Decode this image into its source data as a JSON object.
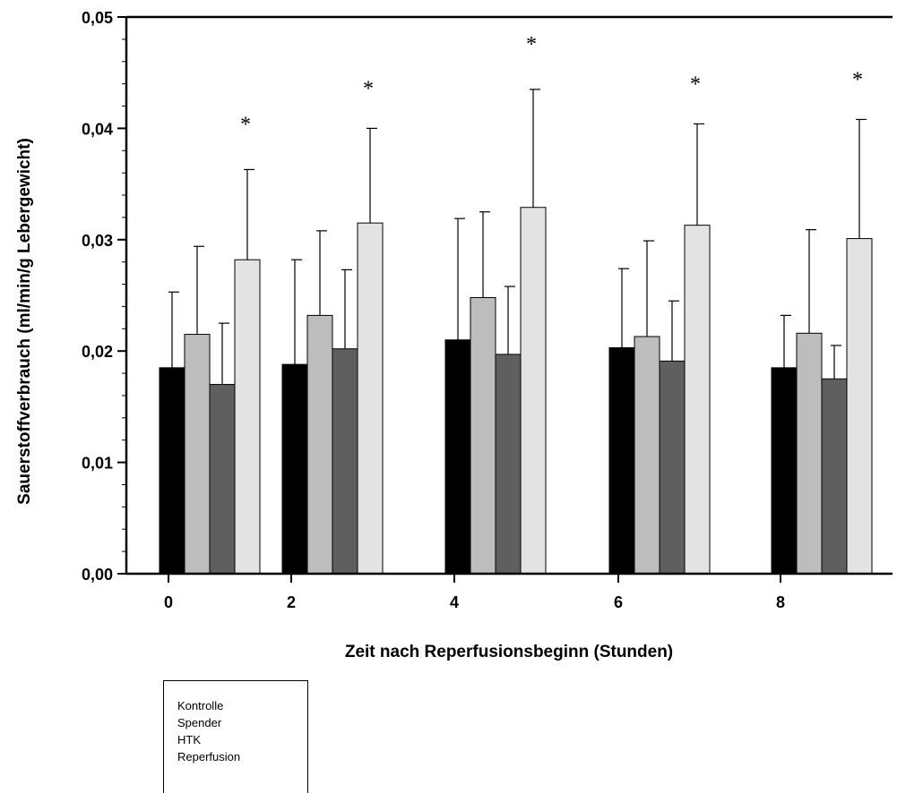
{
  "chart_data": {
    "type": "bar",
    "xlabel": "Zeit nach Reperfusionsbeginn (Stunden)",
    "ylabel": "Sauerstoffverbrauch (ml/min/g Lebergewicht)",
    "ylim": [
      0,
      0.05
    ],
    "yticks": [
      "0,00",
      "0,01",
      "0,02",
      "0,03",
      "0,04",
      "0,05"
    ],
    "categories": [
      "0",
      "2",
      "4",
      "6",
      "8"
    ],
    "series": [
      {
        "name": "Kontrolle",
        "color": "#000000",
        "values": [
          0.0185,
          0.0188,
          0.021,
          0.0203,
          0.0185
        ],
        "errors": [
          0.0068,
          0.0094,
          0.0109,
          0.0071,
          0.0047
        ]
      },
      {
        "name": "Spender",
        "color": "#bdbdbd",
        "values": [
          0.0215,
          0.0232,
          0.0248,
          0.0213,
          0.0216
        ],
        "errors": [
          0.0079,
          0.0076,
          0.0077,
          0.0086,
          0.0093
        ]
      },
      {
        "name": "HTK",
        "color": "#5f5f5f",
        "values": [
          0.017,
          0.0202,
          0.0197,
          0.0191,
          0.0175
        ],
        "errors": [
          0.0055,
          0.0071,
          0.0061,
          0.0054,
          0.003
        ]
      },
      {
        "name": "Reperfusion",
        "color": "#e3e3e3",
        "values": [
          0.0282,
          0.0315,
          0.0329,
          0.0313,
          0.0301
        ],
        "errors": [
          0.0081,
          0.0085,
          0.0106,
          0.0091,
          0.0107
        ]
      }
    ],
    "annotations": [
      "*",
      "*",
      "*",
      "*",
      "*"
    ],
    "legend_position": "below-left",
    "grid": false
  }
}
